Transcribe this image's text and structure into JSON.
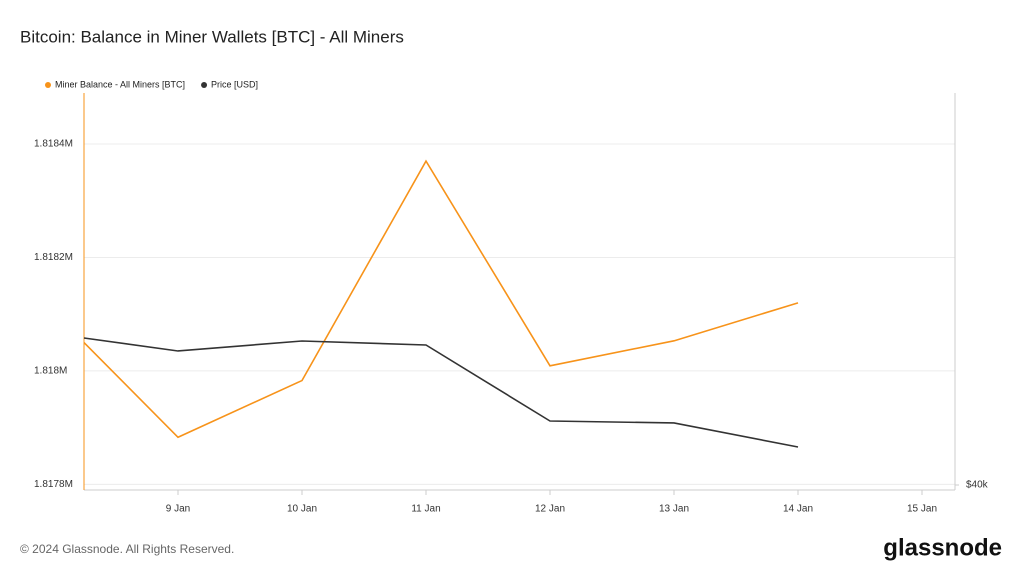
{
  "chart_data": {
    "type": "line",
    "title": "Bitcoin: Balance in Miner Wallets [BTC] - All Miners",
    "categories": [
      null,
      "9 Jan",
      "10 Jan",
      "11 Jan",
      "12 Jan",
      "13 Jan",
      "14 Jan",
      "15 Jan"
    ],
    "series": [
      {
        "name": "Miner Balance - All Miners [BTC]",
        "color": "#f7931a",
        "values": [
          1818050,
          1817883,
          1817983,
          1818370,
          1818009,
          1818053,
          1818120,
          null
        ]
      },
      {
        "name": "Price [USD]",
        "color": "#333333",
        "axis": "y2",
        "values": [
          46431,
          45863,
          46300,
          46125,
          42800,
          42713,
          41663,
          null
        ]
      }
    ],
    "ylim": [
      1817790,
      1818490
    ],
    "yticks": [
      {
        "value": 1817800,
        "label": "1.8178M"
      },
      {
        "value": 1818000,
        "label": "1.818M"
      },
      {
        "value": 1818200,
        "label": "1.8182M"
      },
      {
        "value": 1818400,
        "label": "1.8184M"
      }
    ],
    "y2lim": [
      39781,
      57150
    ],
    "y2ticks": [
      {
        "value": 40000,
        "label": "$40k"
      }
    ],
    "grid": true,
    "legend": "top-left",
    "footer": "© 2024 Glassnode. All Rights Reserved.",
    "logo": "glassnode"
  }
}
